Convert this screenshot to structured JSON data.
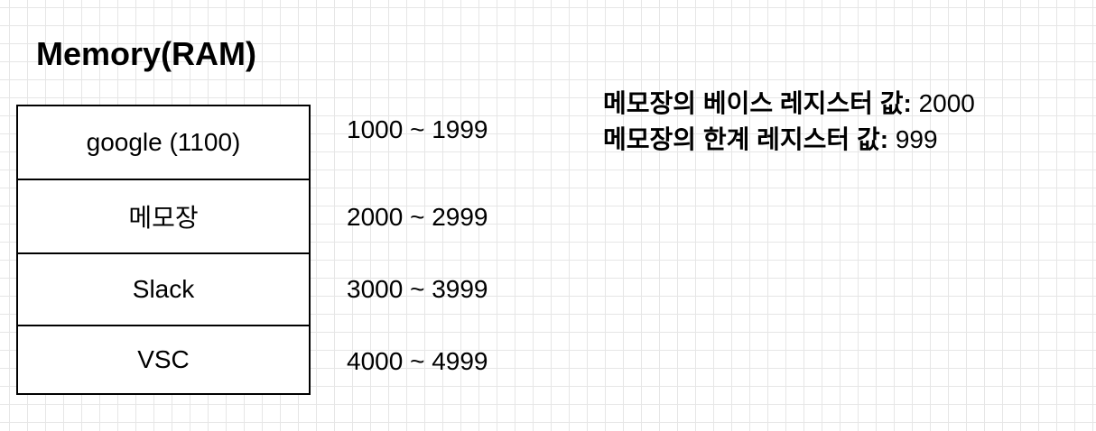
{
  "title": "Memory(RAM)",
  "blocks": [
    {
      "label": "google (1100)"
    },
    {
      "label": "메모장"
    },
    {
      "label": "Slack"
    },
    {
      "label": "VSC"
    }
  ],
  "ranges": [
    {
      "text": "1000 ~ 1999"
    },
    {
      "text": "2000 ~ 2999"
    },
    {
      "text": "3000 ~ 3999"
    },
    {
      "text": "4000 ~ 4999"
    }
  ],
  "notes": [
    {
      "label": "메모장의 베이스 레지스터 값: ",
      "value": "2000"
    },
    {
      "label": "메모장의 한계 레지스터 값: ",
      "value": "999"
    }
  ]
}
